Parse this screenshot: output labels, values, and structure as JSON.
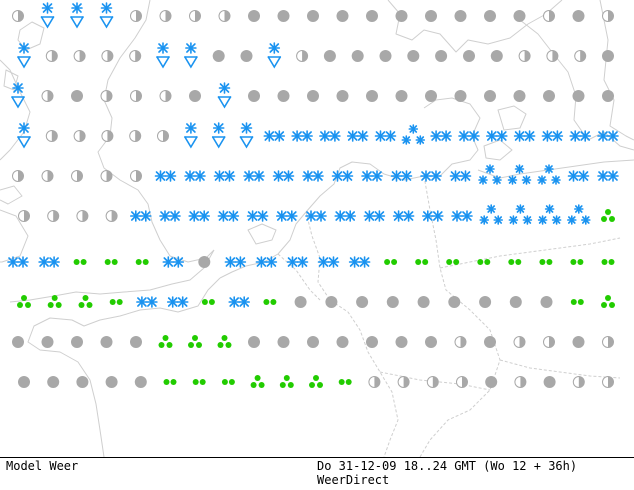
{
  "footer": {
    "product": "Model Weer",
    "valid_time": "Do 31-12-09 18..24 GMT (Wo 12 + 36h)",
    "source": "WeerDirect"
  },
  "colors": {
    "snow": "#1a93f0",
    "rain": "#22cc00",
    "overcast": "#a8a8a8",
    "partly": "#b8b8b8",
    "coast": "#cfcfcf",
    "thunder": "#e02020",
    "background": "#ffffff"
  },
  "legend_symbols": {
    "S": "snow-symbol",
    "W": "snow-shower-symbol",
    "H": "heavy-snow-symbol",
    "R": "light-rain-symbol",
    "D": "moderate-rain-symbol",
    "O": "overcast-cloud-symbol",
    "P": "partly-cloudy-symbol",
    "T": "thunderstorm-symbol"
  },
  "grid_rows": [
    [
      "P",
      "W",
      "W",
      "W",
      "P",
      "P",
      "P",
      "P",
      "O",
      "O",
      "O",
      "O",
      "O",
      "O",
      "O",
      "O",
      "O",
      "O",
      "P",
      "O",
      "P"
    ],
    [
      "W",
      "P",
      "P",
      "P",
      "P",
      "W",
      "W",
      "O",
      "O",
      "W",
      "P",
      "O",
      "O",
      "O",
      "O",
      "O",
      "O",
      "O",
      "P",
      "P",
      "P",
      "O"
    ],
    [
      "W",
      "P",
      "O",
      "P",
      "P",
      "P",
      "O",
      "W",
      "O",
      "O",
      "O",
      "O",
      "O",
      "O",
      "O",
      "O",
      "O",
      "O",
      "O",
      "O",
      "O"
    ],
    [
      "W",
      "P",
      "P",
      "P",
      "P",
      "P",
      "W",
      "W",
      "W",
      "S",
      "S",
      "S",
      "S",
      "S",
      "H",
      "S",
      "S",
      "S",
      "S",
      "S",
      "S",
      "S"
    ],
    [
      "P",
      "P",
      "P",
      "P",
      "P",
      "S",
      "S",
      "S",
      "S",
      "S",
      "S",
      "S",
      "S",
      "S",
      "S",
      "S",
      "H",
      "H",
      "H",
      "S",
      "S"
    ],
    [
      "P",
      "P",
      "P",
      "P",
      "S",
      "S",
      "S",
      "S",
      "S",
      "S",
      "S",
      "S",
      "S",
      "S",
      "S",
      "S",
      "H",
      "H",
      "H",
      "H",
      "D"
    ],
    [
      "S",
      "S",
      "R",
      "R",
      "R",
      "S",
      "O",
      "S",
      "S",
      "S",
      "S",
      "S",
      "R",
      "R",
      "R",
      "R",
      "R",
      "R",
      "R",
      "R"
    ],
    [
      "D",
      "D",
      "D",
      "R",
      "S",
      "S",
      "R",
      "S",
      "R",
      "O",
      "O",
      "O",
      "O",
      "O",
      "O",
      "O",
      "O",
      "O",
      "R",
      "D"
    ],
    [
      "O",
      "O",
      "O",
      "O",
      "O",
      "D",
      "D",
      "D",
      "O",
      "O",
      "O",
      "O",
      "O",
      "O",
      "O",
      "P",
      "O",
      "P",
      "P",
      "O",
      "P"
    ],
    [
      "O",
      "O",
      "O",
      "O",
      "O",
      "R",
      "R",
      "R",
      "D",
      "D",
      "D",
      "R",
      "P",
      "P",
      "P",
      "P",
      "O",
      "P",
      "O",
      "P",
      "P"
    ]
  ]
}
